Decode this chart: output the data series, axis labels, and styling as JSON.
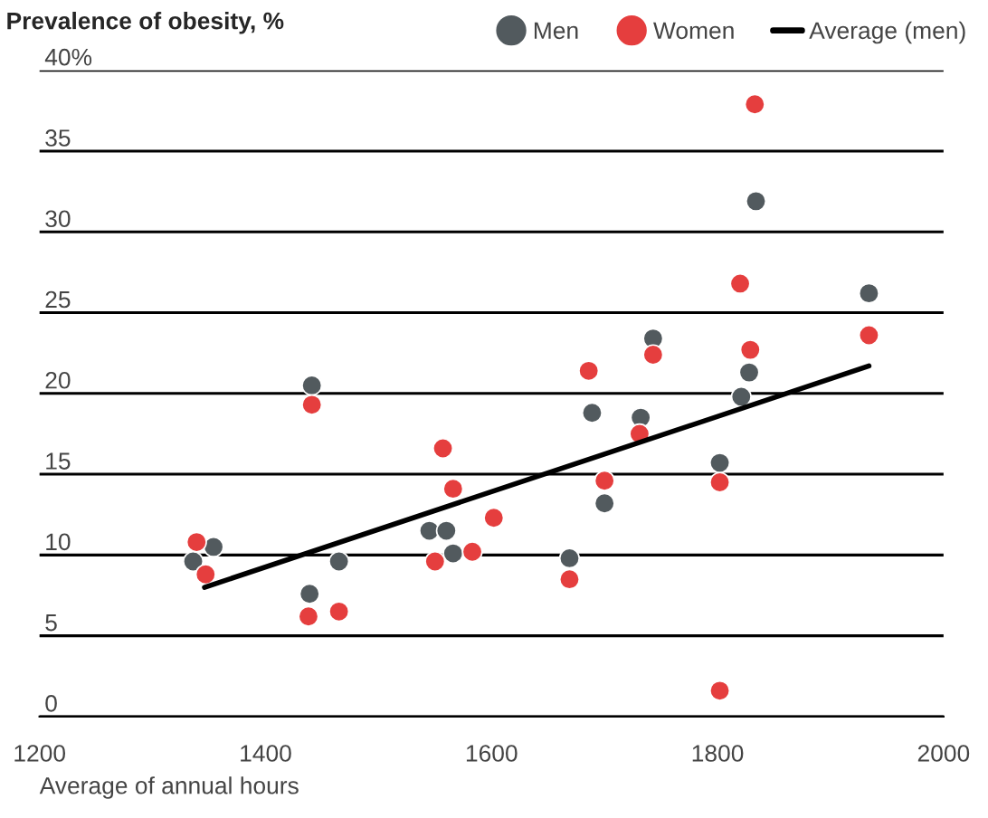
{
  "chart_data": {
    "type": "scatter",
    "title": "Prevalence of obesity, %",
    "xlabel": "Average of annual hours",
    "xlim": [
      1200,
      2000
    ],
    "xticks": [
      1200,
      1400,
      1600,
      1800,
      2000
    ],
    "ylim": [
      0,
      40
    ],
    "yticks": [
      0,
      5,
      10,
      15,
      20,
      25,
      30,
      35,
      {
        "value": 40,
        "label": "40%"
      }
    ],
    "grid": "y",
    "legend": "top right",
    "series": [
      {
        "name": "Men",
        "color": "#525a5e",
        "marker": "circle",
        "x": [
          1336,
          1354,
          1441,
          1439,
          1465,
          1545,
          1560,
          1566,
          1669,
          1689,
          1700,
          1732,
          1743,
          1802,
          1821,
          1828,
          1834,
          1934
        ],
        "values": [
          9.6,
          10.5,
          20.5,
          7.6,
          9.6,
          11.5,
          11.5,
          10.1,
          9.8,
          18.8,
          13.2,
          18.5,
          23.4,
          15.7,
          19.8,
          21.3,
          31.9,
          26.2
        ]
      },
      {
        "name": "Women",
        "color": "#e53e3e",
        "marker": "circle",
        "x": [
          1339,
          1347,
          1441,
          1438,
          1465,
          1557,
          1566,
          1550,
          1583,
          1602,
          1686,
          1669,
          1700,
          1731,
          1743,
          1802,
          1802,
          1820,
          1829,
          1833,
          1934
        ],
        "values": [
          10.8,
          8.8,
          19.3,
          6.2,
          6.5,
          16.6,
          14.1,
          9.6,
          10.2,
          12.3,
          21.4,
          8.5,
          14.6,
          17.5,
          22.4,
          14.5,
          1.6,
          26.8,
          22.7,
          37.9,
          23.6
        ]
      },
      {
        "name": "Average (men)",
        "color": "#000000",
        "type": "line",
        "x": [
          1346,
          1934
        ],
        "values": [
          8.0,
          21.7
        ]
      }
    ]
  }
}
